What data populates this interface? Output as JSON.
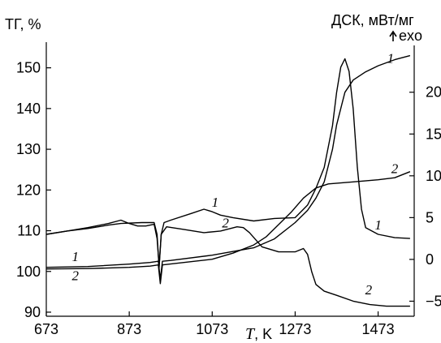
{
  "chart_data": {
    "type": "line",
    "x_label_main": "T",
    "x_label_unit": ", K",
    "left_axis_title": "ТГ, %",
    "right_axis_title": "ДСК, мВт/мг",
    "right_axis_exo": "exo",
    "xlim": [
      673,
      1560
    ],
    "ylim_left": [
      89,
      155.5
    ],
    "ylim_right": [
      -6.8,
      25.6
    ],
    "x_ticks": [
      673,
      873,
      1073,
      1273,
      1473
    ],
    "y_ticks_left": [
      90,
      100,
      110,
      120,
      130,
      140,
      150
    ],
    "y_ticks_right": [
      -5,
      0,
      5,
      10,
      15,
      20
    ],
    "series": [
      {
        "name": "1",
        "kind": "TG",
        "axis": "left",
        "points": [
          [
            673,
            101.0
          ],
          [
            773,
            101.2
          ],
          [
            873,
            101.8
          ],
          [
            923,
            102.2
          ],
          [
            943,
            102.5
          ],
          [
            948,
            98.0
          ],
          [
            953,
            102.5
          ],
          [
            973,
            102.7
          ],
          [
            1073,
            104.0
          ],
          [
            1173,
            105.8
          ],
          [
            1223,
            108.0
          ],
          [
            1273,
            112.0
          ],
          [
            1303,
            115.0
          ],
          [
            1323,
            118.0
          ],
          [
            1343,
            122.0
          ],
          [
            1363,
            130.0
          ],
          [
            1373,
            136.0
          ],
          [
            1383,
            140.0
          ],
          [
            1393,
            144.0
          ],
          [
            1413,
            147.0
          ],
          [
            1443,
            149.0
          ],
          [
            1473,
            150.5
          ],
          [
            1513,
            152.0
          ],
          [
            1550,
            153.0
          ]
        ]
      },
      {
        "name": "2",
        "kind": "TG",
        "axis": "left",
        "points": [
          [
            673,
            100.6
          ],
          [
            773,
            100.7
          ],
          [
            873,
            101.0
          ],
          [
            923,
            101.3
          ],
          [
            943,
            101.6
          ],
          [
            948,
            97.0
          ],
          [
            953,
            101.6
          ],
          [
            1073,
            103.0
          ],
          [
            1123,
            104.5
          ],
          [
            1173,
            106.5
          ],
          [
            1203,
            108.5
          ],
          [
            1233,
            111.5
          ],
          [
            1263,
            114.5
          ],
          [
            1293,
            118.0
          ],
          [
            1323,
            120.5
          ],
          [
            1353,
            121.5
          ],
          [
            1413,
            122.0
          ],
          [
            1473,
            122.5
          ],
          [
            1513,
            123.0
          ],
          [
            1550,
            124.5
          ]
        ]
      },
      {
        "name": "1",
        "kind": "DSC",
        "axis": "right",
        "points": [
          [
            673,
            3.0
          ],
          [
            723,
            3.4
          ],
          [
            773,
            3.7
          ],
          [
            823,
            4.1
          ],
          [
            853,
            4.3
          ],
          [
            903,
            4.4
          ],
          [
            933,
            4.4
          ],
          [
            940,
            3.0
          ],
          [
            945,
            -1.0
          ],
          [
            950,
            3.0
          ],
          [
            957,
            4.4
          ],
          [
            973,
            4.7
          ],
          [
            1023,
            5.5
          ],
          [
            1053,
            6.0
          ],
          [
            1073,
            5.7
          ],
          [
            1093,
            5.3
          ],
          [
            1123,
            5.0
          ],
          [
            1173,
            4.6
          ],
          [
            1223,
            4.9
          ],
          [
            1273,
            5.0
          ],
          [
            1303,
            6.5
          ],
          [
            1323,
            8.5
          ],
          [
            1343,
            11.0
          ],
          [
            1363,
            16.0
          ],
          [
            1373,
            20.0
          ],
          [
            1383,
            23.0
          ],
          [
            1393,
            24.0
          ],
          [
            1403,
            22.5
          ],
          [
            1413,
            18.0
          ],
          [
            1423,
            11.0
          ],
          [
            1433,
            6.0
          ],
          [
            1443,
            3.8
          ],
          [
            1473,
            3.0
          ],
          [
            1513,
            2.6
          ],
          [
            1550,
            2.5
          ]
        ]
      },
      {
        "name": "2",
        "kind": "DSC",
        "axis": "right",
        "points": [
          [
            673,
            3.0
          ],
          [
            723,
            3.4
          ],
          [
            773,
            3.8
          ],
          [
            823,
            4.3
          ],
          [
            853,
            4.7
          ],
          [
            873,
            4.3
          ],
          [
            893,
            4.0
          ],
          [
            913,
            4.0
          ],
          [
            933,
            4.2
          ],
          [
            940,
            2.5
          ],
          [
            945,
            -0.8
          ],
          [
            950,
            3.0
          ],
          [
            963,
            3.9
          ],
          [
            1003,
            3.6
          ],
          [
            1053,
            3.2
          ],
          [
            1093,
            3.4
          ],
          [
            1133,
            3.9
          ],
          [
            1148,
            3.8
          ],
          [
            1163,
            3.2
          ],
          [
            1193,
            1.5
          ],
          [
            1233,
            0.9
          ],
          [
            1273,
            0.9
          ],
          [
            1293,
            1.3
          ],
          [
            1303,
            0.6
          ],
          [
            1313,
            -1.5
          ],
          [
            1323,
            -3.0
          ],
          [
            1343,
            -3.8
          ],
          [
            1373,
            -4.3
          ],
          [
            1413,
            -5.0
          ],
          [
            1453,
            -5.4
          ],
          [
            1493,
            -5.6
          ],
          [
            1550,
            -5.6
          ]
        ]
      }
    ],
    "curve_labels": [
      {
        "text": "1",
        "series": "TG1",
        "x": 1503,
        "y_right": 23.5
      },
      {
        "text": "2",
        "series": "TG2",
        "x": 1513,
        "y_right": 10.3
      },
      {
        "text": "1",
        "series": "DSC1",
        "x": 1080,
        "y_right": 6.3
      },
      {
        "text": "2",
        "series": "DSC2",
        "x": 1105,
        "y_right": 3.8
      },
      {
        "text": "1",
        "series": "DSC1-end",
        "x": 1473,
        "y_right": 3.6
      },
      {
        "text": "2",
        "series": "DSC2-end",
        "x": 1450,
        "y_right": -4.2
      },
      {
        "text": "1",
        "series": "TG1-start",
        "x": 743,
        "y_right": -0.2
      },
      {
        "text": "2",
        "series": "TG2-start",
        "x": 743,
        "y_right": -2.5
      }
    ]
  }
}
